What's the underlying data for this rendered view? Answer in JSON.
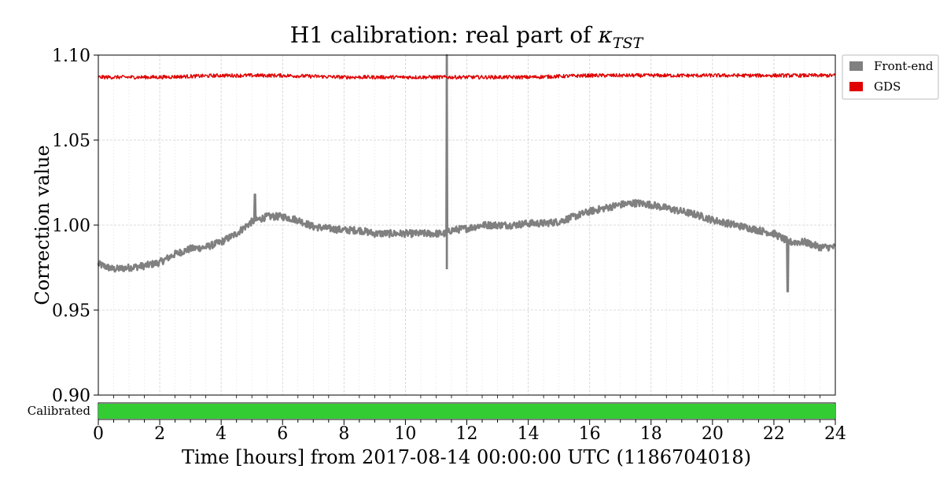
{
  "chart_data": {
    "type": "line",
    "title_main": "H1 calibration: real part of ",
    "title_kappa": "κ",
    "title_sub": "TST",
    "xlabel": "Time [hours] from 2017-08-14 00:00:00 UTC (1186704018)",
    "ylabel": "Correction value",
    "xlim": [
      0,
      24
    ],
    "ylim": [
      0.9,
      1.1
    ],
    "x_ticks": [
      0,
      2,
      4,
      6,
      8,
      10,
      12,
      14,
      16,
      18,
      20,
      22,
      24
    ],
    "x_tick_labels": [
      "0",
      "2",
      "4",
      "6",
      "8",
      "10",
      "12",
      "14",
      "16",
      "18",
      "20",
      "22",
      "24"
    ],
    "y_ticks": [
      0.9,
      0.95,
      1.0,
      1.05,
      1.1
    ],
    "y_tick_labels": [
      "0.90",
      "0.95",
      "1.00",
      "1.05",
      "1.10"
    ],
    "grid": true,
    "legend_position": "outside-top-right",
    "series": [
      {
        "name": "Front-end",
        "color": "#808080",
        "x": [
          0,
          0.5,
          1,
          1.5,
          2,
          2.5,
          3,
          3.5,
          4,
          4.5,
          5,
          5.5,
          6,
          6.5,
          7,
          7.5,
          8,
          8.5,
          9,
          9.5,
          10,
          10.5,
          11,
          11.3,
          11.5,
          12,
          12.5,
          13,
          13.5,
          14,
          14.5,
          15,
          15.5,
          16,
          16.5,
          17,
          17.5,
          18,
          18.5,
          19,
          19.5,
          20,
          20.5,
          21,
          21.5,
          22,
          22.5,
          23,
          23.5,
          24
        ],
        "y": [
          0.977,
          0.974,
          0.975,
          0.976,
          0.978,
          0.983,
          0.986,
          0.987,
          0.99,
          0.995,
          1.002,
          1.005,
          1.005,
          1.003,
          0.999,
          0.998,
          0.997,
          0.997,
          0.995,
          0.995,
          0.995,
          0.995,
          0.995,
          0.995,
          0.997,
          0.998,
          1.0,
          1.0,
          1.0,
          1.001,
          1.001,
          1.002,
          1.005,
          1.008,
          1.01,
          1.012,
          1.013,
          1.012,
          1.01,
          1.008,
          1.006,
          1.003,
          1.001,
          0.999,
          0.997,
          0.995,
          0.99,
          0.99,
          0.987,
          0.987
        ],
        "spikes": [
          {
            "x": 5.1,
            "y_max": 1.018
          },
          {
            "x": 11.35,
            "y_max": 1.1,
            "y_min": 0.974
          },
          {
            "x": 22.45,
            "y_min": 0.961
          }
        ]
      },
      {
        "name": "GDS",
        "color": "#e00000",
        "x": [
          0,
          2,
          4,
          6,
          8,
          10,
          12,
          14,
          16,
          18,
          20,
          22,
          24
        ],
        "y": [
          1.087,
          1.087,
          1.088,
          1.088,
          1.087,
          1.087,
          1.087,
          1.087,
          1.088,
          1.088,
          1.088,
          1.088,
          1.088
        ]
      }
    ],
    "state_bar": {
      "label": "Calibrated",
      "color": "#33cc33",
      "x_start": 0,
      "x_end": 24
    }
  }
}
